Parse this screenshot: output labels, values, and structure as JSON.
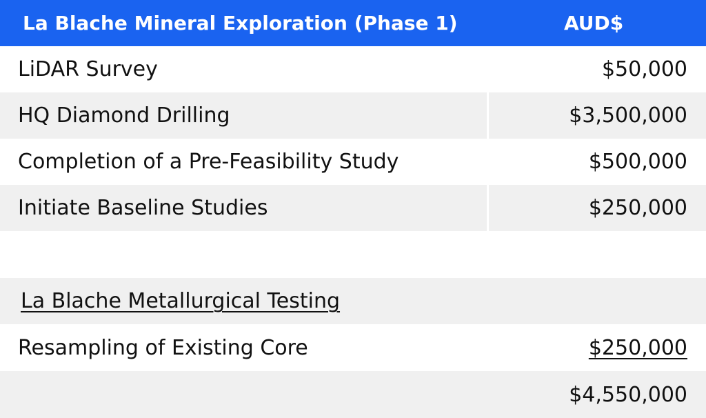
{
  "header": {
    "title": "La Blache Mineral Exploration (Phase 1)",
    "currency": "AUD$"
  },
  "rows": [
    {
      "label": "LiDAR Survey",
      "amount": "$50,000"
    },
    {
      "label": "HQ Diamond Drilling",
      "amount": "$3,500,000"
    },
    {
      "label": "Completion of a Pre-Feasibility Study",
      "amount": "$500,000"
    },
    {
      "label": "Initiate Baseline Studies",
      "amount": "$250,000"
    },
    {
      "label": "",
      "amount": ""
    }
  ],
  "section": {
    "title": "La Blache Metallurgical Testing"
  },
  "section_rows": [
    {
      "label": "Resampling of Existing Core",
      "amount": "$250,000"
    }
  ],
  "total": {
    "amount": "$4,550,000"
  },
  "colors": {
    "header_bg": "#1a63f0",
    "header_text": "#ffffff",
    "stripe": "#f0f0f0"
  }
}
